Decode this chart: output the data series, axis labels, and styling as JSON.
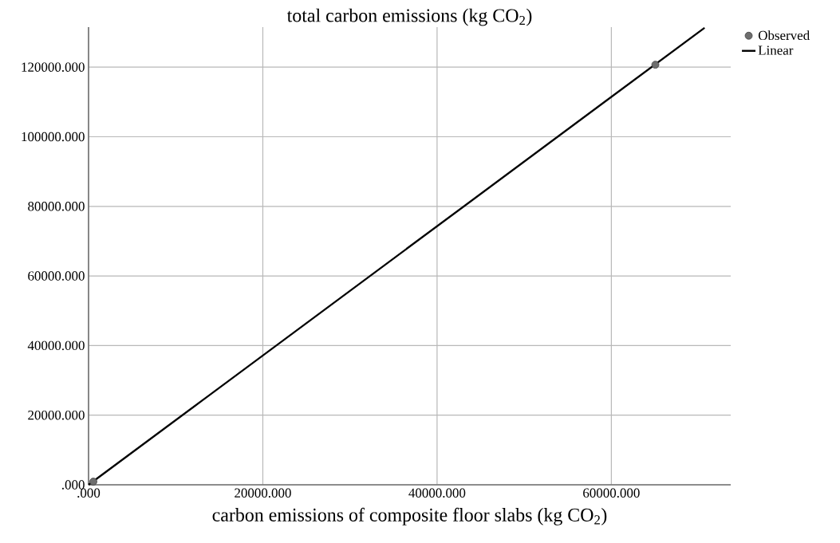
{
  "chart_data": {
    "type": "scatter",
    "xlabel": "carbon emissions of composite floor slabs (kg CO$_{2}$)",
    "ylabel": "total carbon emissions (kg CO$_{2}$)",
    "xlim": [
      0,
      73700
    ],
    "ylim": [
      0,
      131500
    ],
    "xticks": [
      {
        "value": 0,
        "label": ".000"
      },
      {
        "value": 20000,
        "label": "20000.000"
      },
      {
        "value": 40000,
        "label": "40000.000"
      },
      {
        "value": 60000,
        "label": "60000.000"
      }
    ],
    "yticks": [
      {
        "value": 0,
        "label": ".000"
      },
      {
        "value": 20000,
        "label": "20000.000"
      },
      {
        "value": 40000,
        "label": "40000.000"
      },
      {
        "value": 60000,
        "label": "60000.000"
      },
      {
        "value": 80000,
        "label": "80000.000"
      },
      {
        "value": 100000,
        "label": "100000.000"
      },
      {
        "value": 120000,
        "label": "120000.000"
      }
    ],
    "grid": true,
    "legend": "top right",
    "series": [
      {
        "name": "Observed",
        "marker": "circle",
        "color": "#6e6e6e",
        "x": [
          550,
          65050
        ],
        "values": [
          900,
          120700
        ]
      },
      {
        "name": "Linear",
        "type": "line",
        "marker": "none",
        "line_style": "solid",
        "color": "#000000",
        "x": [
          0,
          70700
        ],
        "values": [
          0,
          131300
        ]
      }
    ]
  }
}
